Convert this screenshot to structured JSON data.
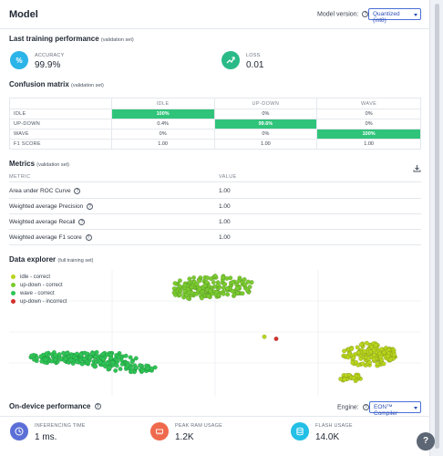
{
  "header": {
    "title": "Model",
    "model_version_label": "Model version:",
    "model_version_value": "Quantized (int8)"
  },
  "last_training": {
    "title": "Last training performance",
    "subtitle": "(validation set)",
    "accuracy_label": "ACCURACY",
    "accuracy_value": "99.9%",
    "loss_label": "LOSS",
    "loss_value": "0.01"
  },
  "confusion_matrix": {
    "title": "Confusion matrix",
    "subtitle": "(validation set)",
    "columns": [
      "IDLE",
      "UP-DOWN",
      "WAVE"
    ],
    "rows": [
      {
        "label": "IDLE",
        "cells": [
          "100%",
          "0%",
          "0%"
        ]
      },
      {
        "label": "UP-DOWN",
        "cells": [
          "0.4%",
          "99.6%",
          "0%"
        ]
      },
      {
        "label": "WAVE",
        "cells": [
          "0%",
          "0%",
          "100%"
        ]
      },
      {
        "label": "F1 SCORE",
        "cells": [
          "1.00",
          "1.00",
          "1.00"
        ]
      }
    ]
  },
  "metrics": {
    "title": "Metrics",
    "subtitle": "(validation set)",
    "col_metric": "METRIC",
    "col_value": "VALUE",
    "rows": [
      {
        "name": "Area under ROC Curve",
        "value": "1.00"
      },
      {
        "name": "Weighted average Precision",
        "value": "1.00"
      },
      {
        "name": "Weighted average Recall",
        "value": "1.00"
      },
      {
        "name": "Weighted average F1 score",
        "value": "1.00"
      }
    ]
  },
  "data_explorer": {
    "title": "Data explorer",
    "subtitle": "(full training set)",
    "legend": [
      {
        "label": "idle - correct",
        "color": "#b9d41e"
      },
      {
        "label": "up-down - correct",
        "color": "#7acb2f"
      },
      {
        "label": "wave - correct",
        "color": "#2ec455"
      },
      {
        "label": "up-down - incorrect",
        "color": "#d3302c"
      }
    ]
  },
  "on_device": {
    "title": "On-device performance",
    "engine_label": "Engine:",
    "engine_value": "EON™ Compiler",
    "inferencing_label": "INFERENCING TIME",
    "inferencing_value": "1 ms.",
    "ram_label": "PEAK RAM USAGE",
    "ram_value": "1.2K",
    "flash_label": "FLASH USAGE",
    "flash_value": "14.0K"
  },
  "colors": {
    "accuracy": "#2bb4e8",
    "loss": "#2aba88",
    "inferencing": "#5b6fd6",
    "ram": "#ef6a4c",
    "flash": "#22bfe6",
    "highlight": "#30c47a"
  },
  "help_glyph": "?"
}
